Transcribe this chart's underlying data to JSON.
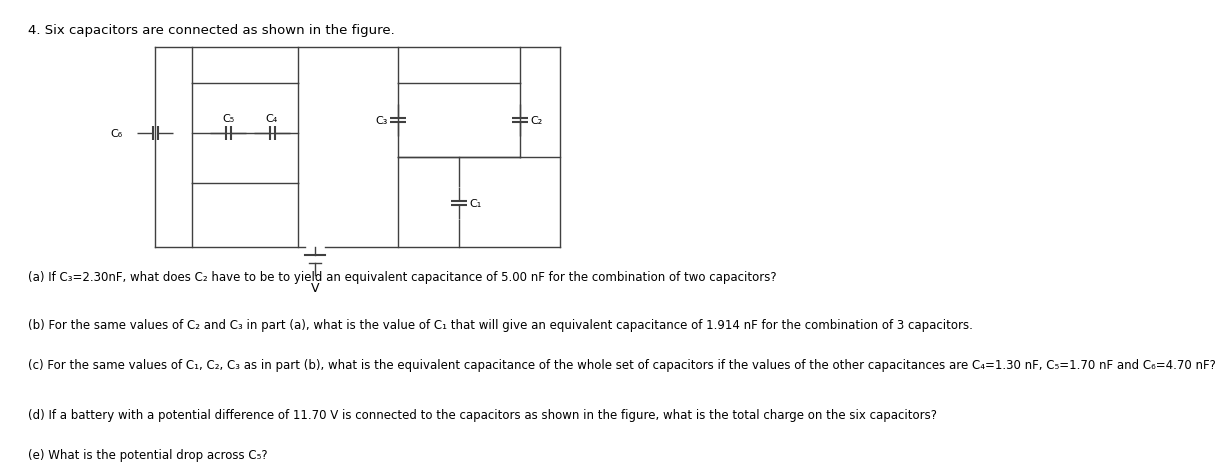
{
  "title": "4. Six capacitors are connected as shown in the figure.",
  "background_color": "#ffffff",
  "text_color": "#000000",
  "line_color": "#404040",
  "questions": [
    "(a) If C₃=2.30nF, what does C₂ have to be to yield an equivalent capacitance of 5.00 nF for the combination of two capacitors?",
    "(b) For the same values of C₂ and C₃ in part (a), what is the value of C₁ that will give an equivalent capacitance of 1.914 nF for the combination of 3 capacitors.",
    "(c) For the same values of C₁, C₂, C₃ as in part (b), what is the equivalent capacitance of the whole set of capacitors if the values of the other capacitances are C₄=1.30 nF, C₅=1.70 nF and C₆=4.70 nF?",
    "(d) If a battery with a potential difference of 11.70 V is connected to the capacitors as shown in the figure, what is the total charge on the six capacitors?",
    "(e) What is the potential drop across C₅?"
  ],
  "font_size": 8.5,
  "title_font_size": 9.5,
  "label_font_size": 8.0,
  "circuit": {
    "lw": 1.0,
    "cap_lw": 1.5,
    "cap_size": 0.055
  }
}
